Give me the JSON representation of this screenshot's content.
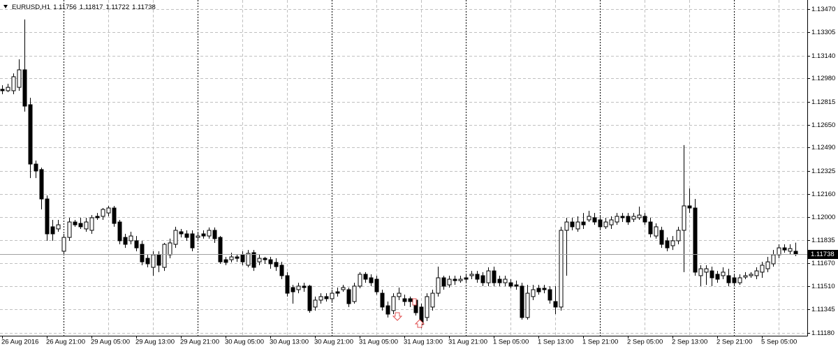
{
  "chart_data": {
    "type": "candlestick",
    "title": "EURUSD,H1",
    "up_color": "#ffffff",
    "down_color": "#000000",
    "grid": true,
    "ylim": [
      1.11158,
      1.13534
    ],
    "yticks": [
      {
        "value": 1.1347,
        "label": "1.13470"
      },
      1.13305,
      {
        "value": 1.1314,
        "label": "1.13140"
      },
      {
        "value": 1.1298,
        "label": "1.12980"
      },
      1.12815,
      {
        "value": 1.1265,
        "label": "1.12650"
      },
      {
        "value": 1.1249,
        "label": "1.12490"
      },
      1.12325,
      {
        "value": 1.1216,
        "label": "1.12160"
      },
      {
        "value": 1.12,
        "label": "1.12000"
      },
      1.11835,
      {
        "value": 1.1167,
        "label": "1.11670"
      },
      {
        "value": 1.1151,
        "label": "1.11510"
      },
      1.11345,
      {
        "value": 1.1118,
        "label": "1.11180"
      }
    ],
    "categories": [
      "26 Aug 2016",
      null,
      null,
      null,
      null,
      null,
      null,
      null,
      "26 Aug 21:00",
      null,
      null,
      null,
      null,
      null,
      null,
      null,
      "29 Aug 05:00",
      null,
      null,
      null,
      null,
      null,
      null,
      null,
      "29 Aug 13:00",
      null,
      null,
      null,
      null,
      null,
      null,
      null,
      "29 Aug 21:00",
      null,
      null,
      null,
      null,
      null,
      null,
      null,
      "30 Aug 05:00",
      null,
      null,
      null,
      null,
      null,
      null,
      null,
      "30 Aug 13:00",
      null,
      null,
      null,
      null,
      null,
      null,
      null,
      "30 Aug 21:00",
      null,
      null,
      null,
      null,
      null,
      null,
      null,
      "31 Aug 05:00",
      null,
      null,
      null,
      null,
      null,
      null,
      null,
      "31 Aug 13:00",
      null,
      null,
      null,
      null,
      null,
      null,
      null,
      "31 Aug 21:00",
      null,
      null,
      null,
      null,
      null,
      null,
      null,
      "1 Sep 05:00",
      null,
      null,
      null,
      null,
      null,
      null,
      null,
      "1 Sep 13:00",
      null,
      null,
      null,
      null,
      null,
      null,
      null,
      "1 Sep 21:00",
      null,
      null,
      null,
      null,
      null,
      null,
      null,
      "2 Sep 05:00",
      null,
      null,
      null,
      null,
      null,
      null,
      null,
      "2 Sep 13:00",
      null,
      null,
      null,
      null,
      null,
      null,
      null,
      "2 Sep 21:00",
      null,
      null,
      null,
      null,
      null,
      null,
      null,
      "5 Sep 05:00",
      null,
      null,
      null,
      null,
      null,
      null
    ],
    "open": [
      1.12902,
      1.12892,
      1.12892,
      1.12916,
      1.1304,
      1.12793,
      1.12373,
      1.12334,
      1.12126,
      1.11929,
      1.11914,
      1.11756,
      1.11854,
      1.11963,
      1.11953,
      1.11914,
      1.11904,
      1.12003,
      1.12003,
      1.12027,
      1.12062,
      1.11963,
      1.11854,
      1.1183,
      1.1183,
      1.11805,
      1.11706,
      1.11642,
      1.11731,
      1.11642,
      1.11731,
      1.11805,
      1.11894,
      1.11879,
      1.11879,
      1.11854,
      1.11879,
      1.11864,
      1.11904,
      1.11854,
      1.11696,
      1.11696,
      1.11716,
      1.11731,
      1.11657,
      1.11746,
      1.11681,
      1.11706,
      1.11696,
      1.11677,
      1.11657,
      1.11583,
      1.11499,
      1.11484,
      1.11509,
      1.11509,
      1.11361,
      1.1141,
      1.11435,
      1.1142,
      1.11469,
      1.11484,
      1.11484,
      1.114,
      1.11509,
      1.11593,
      1.11568,
      1.11558,
      1.11459,
      1.1137,
      1.11336,
      1.11435,
      1.1142,
      1.1142,
      1.1141,
      1.11361,
      1.11287,
      1.11361,
      1.11459,
      1.11568,
      1.11518,
      1.11558,
      1.11548,
      1.11568,
      1.11583,
      1.11593,
      1.11583,
      1.11533,
      1.11617,
      1.11558,
      1.11533,
      1.11533,
      1.11518,
      1.11509,
      1.11287,
      1.11435,
      1.11494,
      1.11494,
      1.11484,
      1.114,
      1.11361,
      1.11904,
      1.11963,
      1.11914,
      1.11963,
      1.11978,
      1.11993,
      1.11978,
      1.11929,
      1.11943,
      1.11963,
      1.12003,
      1.12003,
      1.11983,
      1.11993,
      1.12003,
      1.11963,
      1.11864,
      1.11904,
      1.1183,
      1.11795,
      1.1183,
      1.11904,
      1.12077,
      1.12062,
      1.11583,
      1.11608,
      1.11617,
      1.11593,
      1.11583,
      1.11583,
      1.11568,
      1.11533,
      1.11573,
      1.11583,
      1.11583,
      1.11608,
      1.11632,
      1.11667,
      1.11731,
      1.1178,
      1.11756,
      1.11756
    ],
    "high": [
      1.12931,
      1.12941,
      1.13015,
      1.13114,
      1.13396,
      1.12842,
      1.12398,
      1.12348,
      1.12151,
      1.11978,
      1.11978,
      1.11879,
      1.11993,
      1.11978,
      1.11993,
      1.11993,
      1.12012,
      1.12027,
      1.12062,
      1.12077,
      1.12077,
      1.11978,
      1.11879,
      1.11894,
      1.11864,
      1.1183,
      1.11731,
      1.11756,
      1.11756,
      1.11815,
      1.11845,
      1.11929,
      1.11914,
      1.11904,
      1.11904,
      1.11894,
      1.11904,
      1.11924,
      1.11924,
      1.11864,
      1.11716,
      1.11746,
      1.11731,
      1.11756,
      1.11765,
      1.11765,
      1.11731,
      1.11716,
      1.11716,
      1.11706,
      1.11681,
      1.11608,
      1.11518,
      1.11533,
      1.11533,
      1.11518,
      1.11435,
      1.11459,
      1.11459,
      1.11484,
      1.11499,
      1.11518,
      1.11499,
      1.11533,
      1.11608,
      1.11608,
      1.11593,
      1.11583,
      1.11484,
      1.114,
      1.11459,
      1.11499,
      1.11449,
      1.11435,
      1.1142,
      1.11385,
      1.11459,
      1.11484,
      1.11647,
      1.11583,
      1.11583,
      1.11583,
      1.11583,
      1.11593,
      1.11617,
      1.11617,
      1.11608,
      1.11642,
      1.11647,
      1.11583,
      1.11583,
      1.11558,
      1.11548,
      1.11533,
      1.11518,
      1.11518,
      1.11518,
      1.11518,
      1.11509,
      1.11509,
      1.11929,
      1.11993,
      1.11993,
      1.12003,
      1.12027,
      1.12042,
      1.12027,
      1.12003,
      1.11993,
      1.12003,
      1.12027,
      1.12027,
      1.12027,
      1.12027,
      1.12072,
      1.12027,
      1.11993,
      1.11953,
      1.11929,
      1.11854,
      1.11864,
      1.11929,
      1.12507,
      1.122,
      1.12126,
      1.11657,
      1.11657,
      1.11647,
      1.11617,
      1.11642,
      1.11632,
      1.11593,
      1.11593,
      1.11608,
      1.11608,
      1.11642,
      1.11681,
      1.11716,
      1.11765,
      1.11805,
      1.11805,
      1.11805,
      1.11817
    ],
    "low": [
      1.12867,
      1.12882,
      1.12867,
      1.12892,
      1.12744,
      1.12274,
      1.12274,
      1.12052,
      1.1183,
      1.1183,
      1.11894,
      1.11731,
      1.1183,
      1.11929,
      1.11914,
      1.11894,
      1.11879,
      1.11978,
      1.11978,
      1.12003,
      1.11929,
      1.11805,
      1.1178,
      1.11805,
      1.11756,
      1.11657,
      1.11642,
      1.11583,
      1.11608,
      1.11617,
      1.11706,
      1.1178,
      1.11854,
      1.1183,
      1.11756,
      1.1183,
      1.11845,
      1.11845,
      1.11815,
      1.11667,
      1.11657,
      1.11677,
      1.11681,
      1.11657,
      1.11642,
      1.11617,
      1.11657,
      1.11667,
      1.11632,
      1.11617,
      1.11558,
      1.11435,
      1.11385,
      1.11459,
      1.11469,
      1.11321,
      1.11336,
      1.11385,
      1.114,
      1.114,
      1.11435,
      1.11469,
      1.11361,
      1.11385,
      1.11494,
      1.11533,
      1.11509,
      1.11449,
      1.11336,
      1.11287,
      1.11311,
      1.1141,
      1.1137,
      1.11361,
      1.11301,
      1.11212,
      1.11262,
      1.11336,
      1.11435,
      1.11484,
      1.11499,
      1.11518,
      1.11533,
      1.11533,
      1.11558,
      1.11533,
      1.11509,
      1.11509,
      1.11509,
      1.11509,
      1.11509,
      1.11494,
      1.11484,
      1.11272,
      1.11272,
      1.1141,
      1.11449,
      1.11459,
      1.11385,
      1.11311,
      1.11336,
      1.11583,
      1.11904,
      1.11894,
      1.11914,
      1.11963,
      1.11943,
      1.11914,
      1.11914,
      1.11914,
      1.11943,
      1.11963,
      1.11943,
      1.11963,
      1.11978,
      1.11943,
      1.11854,
      1.11845,
      1.1178,
      1.11756,
      1.11765,
      1.11805,
      1.11608,
      1.12027,
      1.11583,
      1.11509,
      1.11518,
      1.11509,
      1.11533,
      1.11558,
      1.11509,
      1.11518,
      1.11518,
      1.11558,
      1.11568,
      1.11558,
      1.11568,
      1.11608,
      1.11647,
      1.11706,
      1.11746,
      1.11731,
      1.11722
    ],
    "close": [
      1.12892,
      1.12916,
      1.12991,
      1.1304,
      1.12783,
      1.12373,
      1.12324,
      1.12126,
      1.11879,
      1.11879,
      1.11943,
      1.11854,
      1.11963,
      1.11943,
      1.11929,
      1.11963,
      1.11993,
      1.11993,
      1.12052,
      1.12062,
      1.11953,
      1.1183,
      1.11805,
      1.11864,
      1.1178,
      1.11681,
      1.11667,
      1.11731,
      1.11657,
      1.11805,
      1.11815,
      1.11904,
      1.11879,
      1.11854,
      1.1178,
      1.11864,
      1.11864,
      1.11904,
      1.11845,
      1.11681,
      1.11677,
      1.11716,
      1.11706,
      1.11681,
      1.11741,
      1.11642,
      1.11706,
      1.11696,
      1.11667,
      1.11647,
      1.11583,
      1.11459,
      1.11469,
      1.11509,
      1.11499,
      1.11336,
      1.1141,
      1.11435,
      1.1142,
      1.11459,
      1.11459,
      1.11499,
      1.11385,
      1.11509,
      1.11593,
      1.11558,
      1.11533,
      1.11469,
      1.11361,
      1.11311,
      1.11435,
      1.11459,
      1.114,
      1.114,
      1.11321,
      1.11237,
      1.11435,
      1.11459,
      1.11568,
      1.11509,
      1.11558,
      1.11548,
      1.11558,
      1.11558,
      1.11593,
      1.11558,
      1.11533,
      1.11617,
      1.11533,
      1.11533,
      1.11558,
      1.11509,
      1.11509,
      1.11287,
      1.11459,
      1.11484,
      1.11469,
      1.11484,
      1.1141,
      1.11361,
      1.11904,
      1.11963,
      1.11929,
      1.11963,
      1.11943,
      1.12003,
      1.11963,
      1.11929,
      1.11963,
      1.11978,
      1.12003,
      1.11993,
      1.11963,
      1.12003,
      1.12012,
      1.11963,
      1.11879,
      1.11929,
      1.11805,
      1.1178,
      1.1183,
      1.11904,
      1.12077,
      1.12062,
      1.11608,
      1.11632,
      1.11632,
      1.11568,
      1.11558,
      1.11608,
      1.11533,
      1.11533,
      1.11568,
      1.11583,
      1.11593,
      1.11617,
      1.11657,
      1.11681,
      1.11731,
      1.1178,
      1.11765,
      1.11775,
      1.11738
    ]
  }
}
